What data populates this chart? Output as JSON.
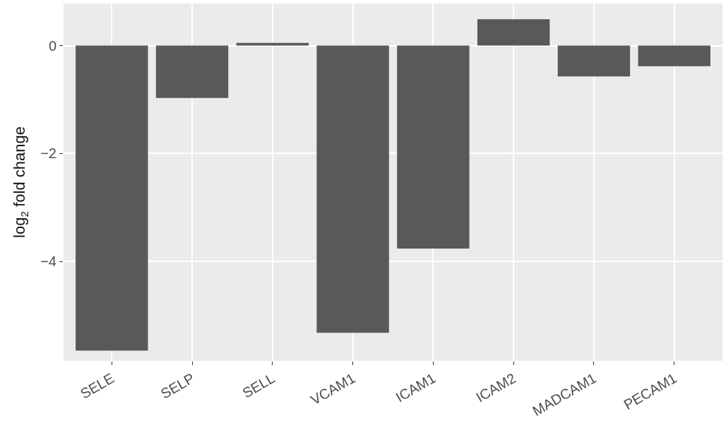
{
  "chart_data": {
    "type": "bar",
    "ylabel": "log$_{2}$ fold change",
    "categories": [
      "SELE",
      "SELP",
      "SELL",
      "VCAM1",
      "ICAM1",
      "ICAM2",
      "MADCAM1",
      "PECAM1"
    ],
    "values": [
      -5.65,
      -0.97,
      0.05,
      -5.32,
      -3.76,
      0.49,
      -0.57,
      -0.38
    ],
    "color": "#595959",
    "ylim": [
      -5.84,
      0.78
    ],
    "yticks": [
      {
        "value": -4,
        "label": "−4"
      },
      {
        "value": -2,
        "label": "−2"
      },
      0
    ],
    "grid": true
  }
}
